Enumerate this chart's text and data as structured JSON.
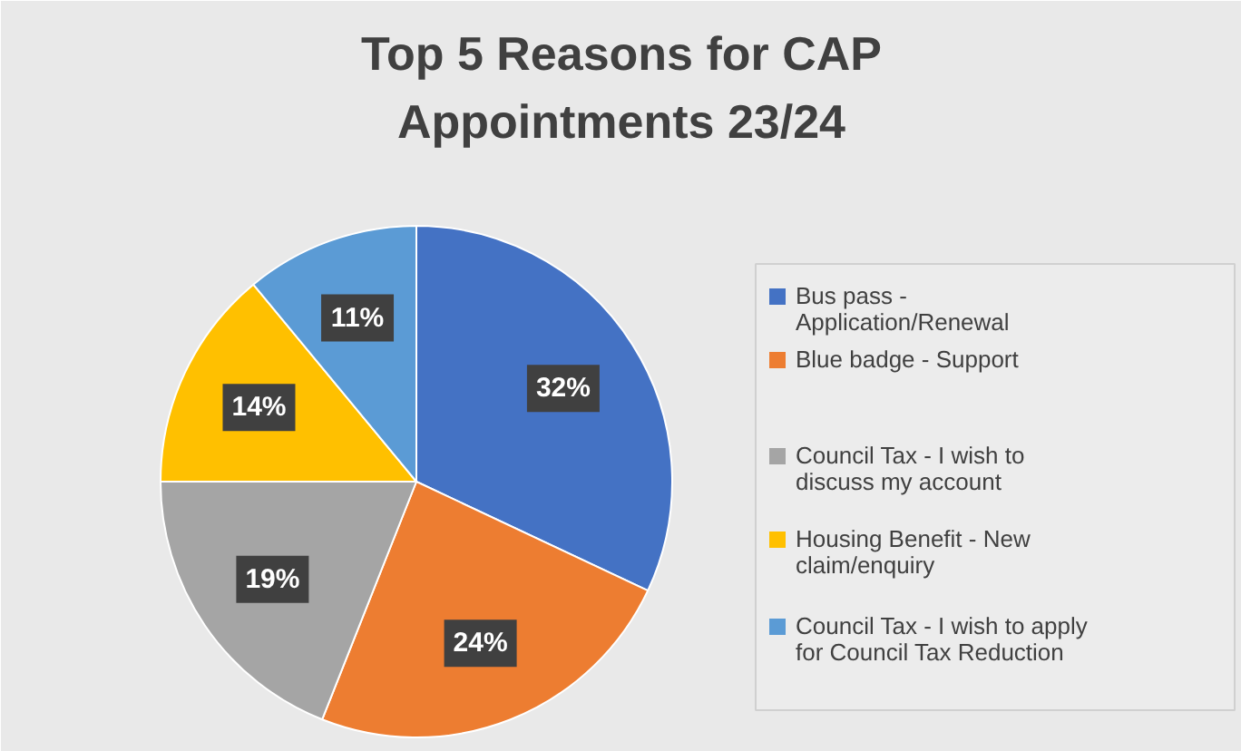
{
  "chart_data": {
    "type": "pie",
    "title": "Top 5 Reasons for CAP Appointments 23/24",
    "categories": [
      "Bus pass - Application/Renewal",
      "Blue badge - Support",
      "Council Tax - I wish to discuss my account",
      "Housing Benefit - New claim/enquiry",
      "Council Tax - I wish to apply for Council Tax Reduction"
    ],
    "values": [
      32,
      24,
      19,
      14,
      11
    ],
    "colors": [
      "#4472c4",
      "#ed7d31",
      "#a5a5a5",
      "#ffc000",
      "#5b9bd5"
    ],
    "value_labels": [
      "32%",
      "24%",
      "19%",
      "14%",
      "11%"
    ],
    "legend": "right"
  }
}
